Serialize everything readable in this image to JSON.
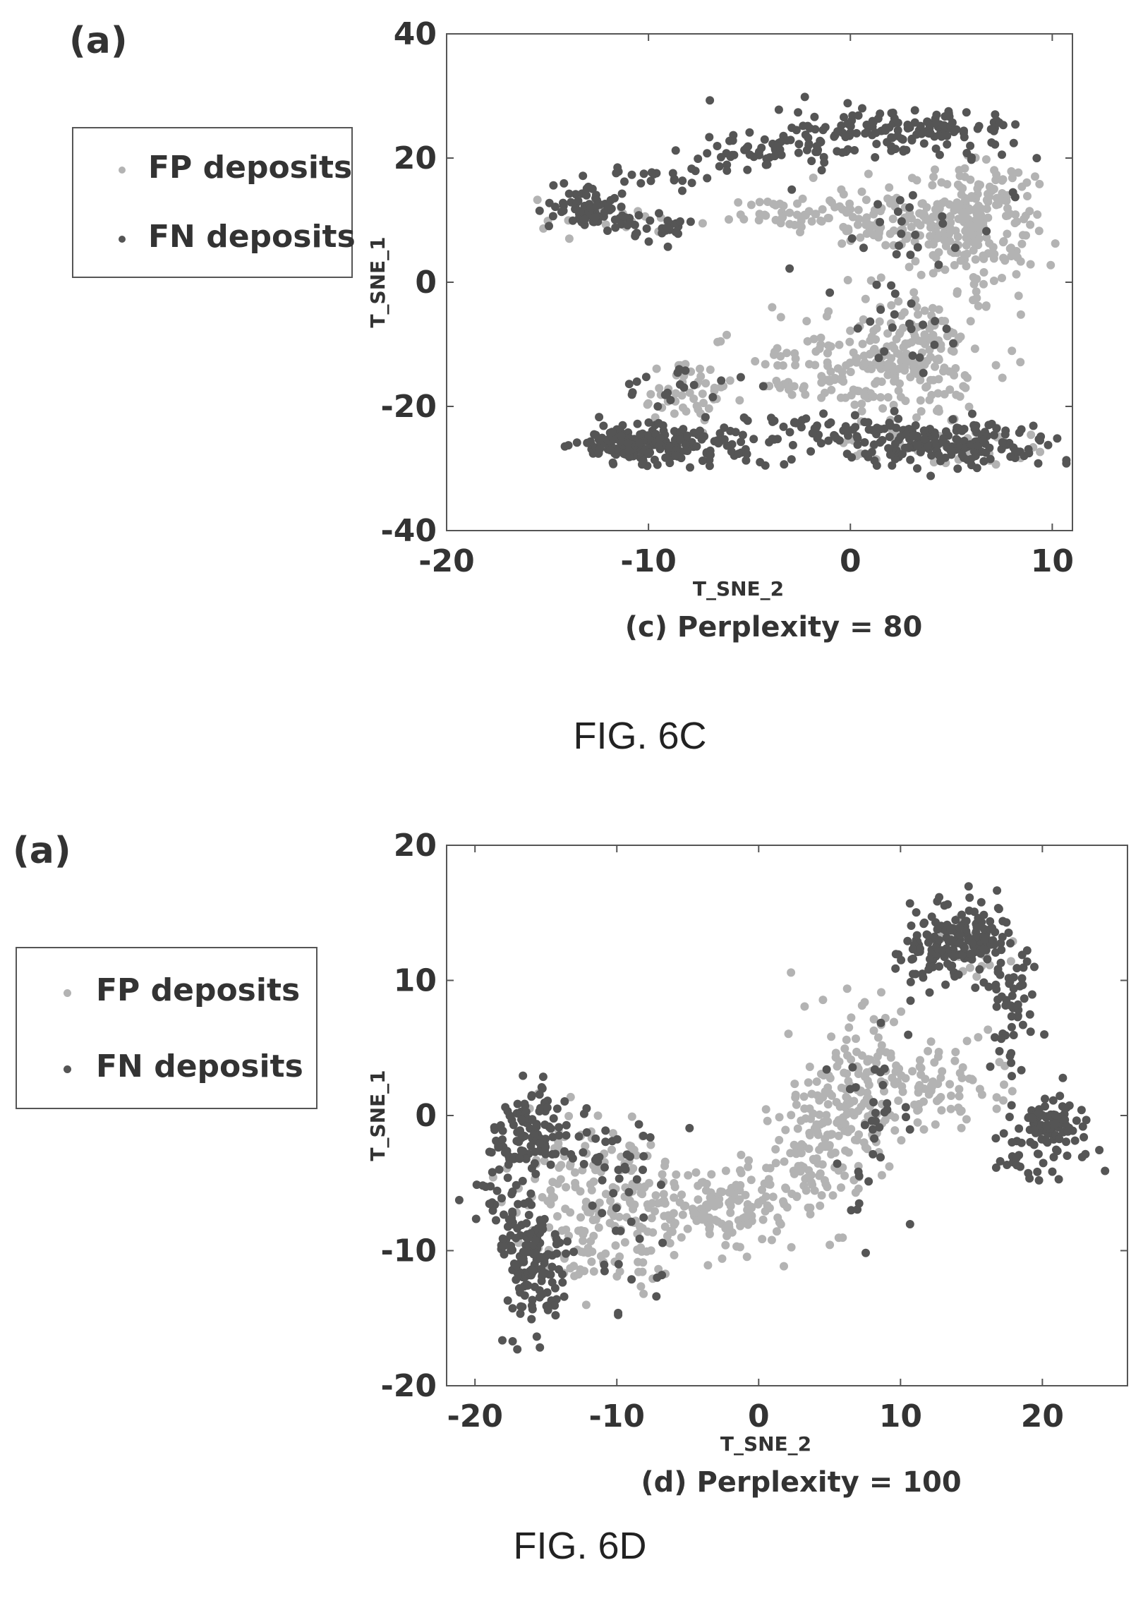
{
  "figures": [
    {
      "panel_label": "(a)",
      "caption": "FIG. 6C",
      "legend": [
        {
          "label": "FP deposits",
          "color": "#b3b3b3"
        },
        {
          "label": "FN deposits",
          "color": "#555555"
        }
      ]
    },
    {
      "panel_label": "(a)",
      "caption": "FIG. 6D",
      "legend": [
        {
          "label": "FP deposits",
          "color": "#b3b3b3"
        },
        {
          "label": "FN deposits",
          "color": "#555555"
        }
      ]
    }
  ],
  "chart_data": [
    {
      "type": "scatter",
      "title": "(c) Perplexity = 80",
      "xlabel": "T_SNE_2",
      "ylabel": "T_SNE_1",
      "xlim": [
        -20,
        11
      ],
      "ylim": [
        -40,
        40
      ],
      "xticks": [
        -20,
        -10,
        0,
        10
      ],
      "yticks": [
        -40,
        -20,
        0,
        20,
        40
      ],
      "grid": false,
      "legend_position": "outside-left",
      "series": [
        {
          "name": "FP deposits",
          "color": "#b3b3b3",
          "clusters": [
            {
              "cx": 6,
              "cy": 10,
              "sx": 1.6,
              "sy": 4.5,
              "n": 230
            },
            {
              "cx": 2,
              "cy": 10,
              "sx": 2.0,
              "sy": 2.5,
              "n": 90
            },
            {
              "cx": -3,
              "cy": 11,
              "sx": 1.5,
              "sy": 1.2,
              "n": 40
            },
            {
              "cx": 2.5,
              "cy": -12,
              "sx": 2.2,
              "sy": 6.0,
              "n": 230
            },
            {
              "cx": -2,
              "cy": -14,
              "sx": 2.5,
              "sy": 3.0,
              "n": 60
            },
            {
              "cx": -8,
              "cy": -18,
              "sx": 1.5,
              "sy": 3.0,
              "n": 45
            },
            {
              "cx": 5,
              "cy": -27,
              "sx": 2.5,
              "sy": 1.5,
              "n": 40
            },
            {
              "cx": -12,
              "cy": 10,
              "sx": 2.0,
              "sy": 1.5,
              "n": 20
            }
          ]
        },
        {
          "name": "FN deposits",
          "color": "#555555",
          "clusters": [
            {
              "cx": 2.5,
              "cy": 24,
              "sx": 3.0,
              "sy": 2.0,
              "n": 150
            },
            {
              "cx": -4,
              "cy": 21,
              "sx": 2.5,
              "sy": 1.3,
              "n": 50
            },
            {
              "cx": -9,
              "cy": 17,
              "sx": 1.8,
              "sy": 1.2,
              "n": 25
            },
            {
              "cx": -13,
              "cy": 12,
              "sx": 1.0,
              "sy": 1.5,
              "n": 70
            },
            {
              "cx": -10,
              "cy": 9,
              "sx": 1.2,
              "sy": 1.2,
              "n": 30
            },
            {
              "cx": -10.5,
              "cy": -26,
              "sx": 1.6,
              "sy": 1.5,
              "n": 160
            },
            {
              "cx": -6,
              "cy": -26,
              "sx": 2.0,
              "sy": 2.0,
              "n": 60
            },
            {
              "cx": 5,
              "cy": -26,
              "sx": 2.6,
              "sy": 1.6,
              "n": 160
            },
            {
              "cx": 0,
              "cy": -24,
              "sx": 2.5,
              "sy": 1.2,
              "n": 50
            },
            {
              "cx": -8,
              "cy": -17,
              "sx": 1.5,
              "sy": 2.0,
              "n": 20
            },
            {
              "cx": 3,
              "cy": -8,
              "sx": 1.5,
              "sy": 4.0,
              "n": 20
            },
            {
              "cx": 3,
              "cy": 8,
              "sx": 2.5,
              "sy": 4.0,
              "n": 25
            }
          ]
        }
      ]
    },
    {
      "type": "scatter",
      "title": "(d) Perplexity = 100",
      "xlabel": "T_SNE_2",
      "ylabel": "T_SNE_1",
      "xlim": [
        -22,
        26
      ],
      "ylim": [
        -20,
        20
      ],
      "xticks": [
        -20,
        -10,
        0,
        10,
        20
      ],
      "yticks": [
        -20,
        -10,
        0,
        10,
        20
      ],
      "grid": false,
      "legend_position": "outside-left",
      "series": [
        {
          "name": "FP deposits",
          "color": "#b3b3b3",
          "clusters": [
            {
              "cx": -10,
              "cy": -7,
              "sx": 2.5,
              "sy": 3.0,
              "n": 160
            },
            {
              "cx": -3,
              "cy": -7,
              "sx": 3.0,
              "sy": 1.6,
              "n": 150
            },
            {
              "cx": 4,
              "cy": -3,
              "sx": 1.8,
              "sy": 2.5,
              "n": 120
            },
            {
              "cx": 7,
              "cy": 2,
              "sx": 1.8,
              "sy": 3.0,
              "n": 140
            },
            {
              "cx": 13,
              "cy": 2,
              "sx": 2.5,
              "sy": 2.0,
              "n": 70
            },
            {
              "cx": -15,
              "cy": -6,
              "sx": 2.0,
              "sy": 3.0,
              "n": 40
            },
            {
              "cx": 15,
              "cy": 12,
              "sx": 1.5,
              "sy": 1.5,
              "n": 30
            }
          ]
        },
        {
          "name": "FN deposits",
          "color": "#555555",
          "clusters": [
            {
              "cx": -16,
              "cy": -11,
              "sx": 1.2,
              "sy": 2.2,
              "n": 140
            },
            {
              "cx": -16,
              "cy": -1,
              "sx": 1.4,
              "sy": 1.5,
              "n": 110
            },
            {
              "cx": -18,
              "cy": -5,
              "sx": 1.2,
              "sy": 2.5,
              "n": 40
            },
            {
              "cx": -10,
              "cy": -3,
              "sx": 1.8,
              "sy": 1.5,
              "n": 30
            },
            {
              "cx": 14,
              "cy": 13,
              "sx": 2.0,
              "sy": 1.5,
              "n": 160
            },
            {
              "cx": 18,
              "cy": 8,
              "sx": 1.0,
              "sy": 2.5,
              "n": 50
            },
            {
              "cx": 20.5,
              "cy": -0.5,
              "sx": 1.2,
              "sy": 1.0,
              "n": 80
            },
            {
              "cx": 19,
              "cy": -3,
              "sx": 1.5,
              "sy": 0.8,
              "n": 30
            },
            {
              "cx": 8,
              "cy": 0,
              "sx": 1.5,
              "sy": 4.0,
              "n": 35
            },
            {
              "cx": -10,
              "cy": -10,
              "sx": 2.0,
              "sy": 3.0,
              "n": 20
            },
            {
              "cx": 11,
              "cy": 11,
              "sx": 1.0,
              "sy": 1.0,
              "n": 15
            }
          ]
        }
      ]
    }
  ]
}
